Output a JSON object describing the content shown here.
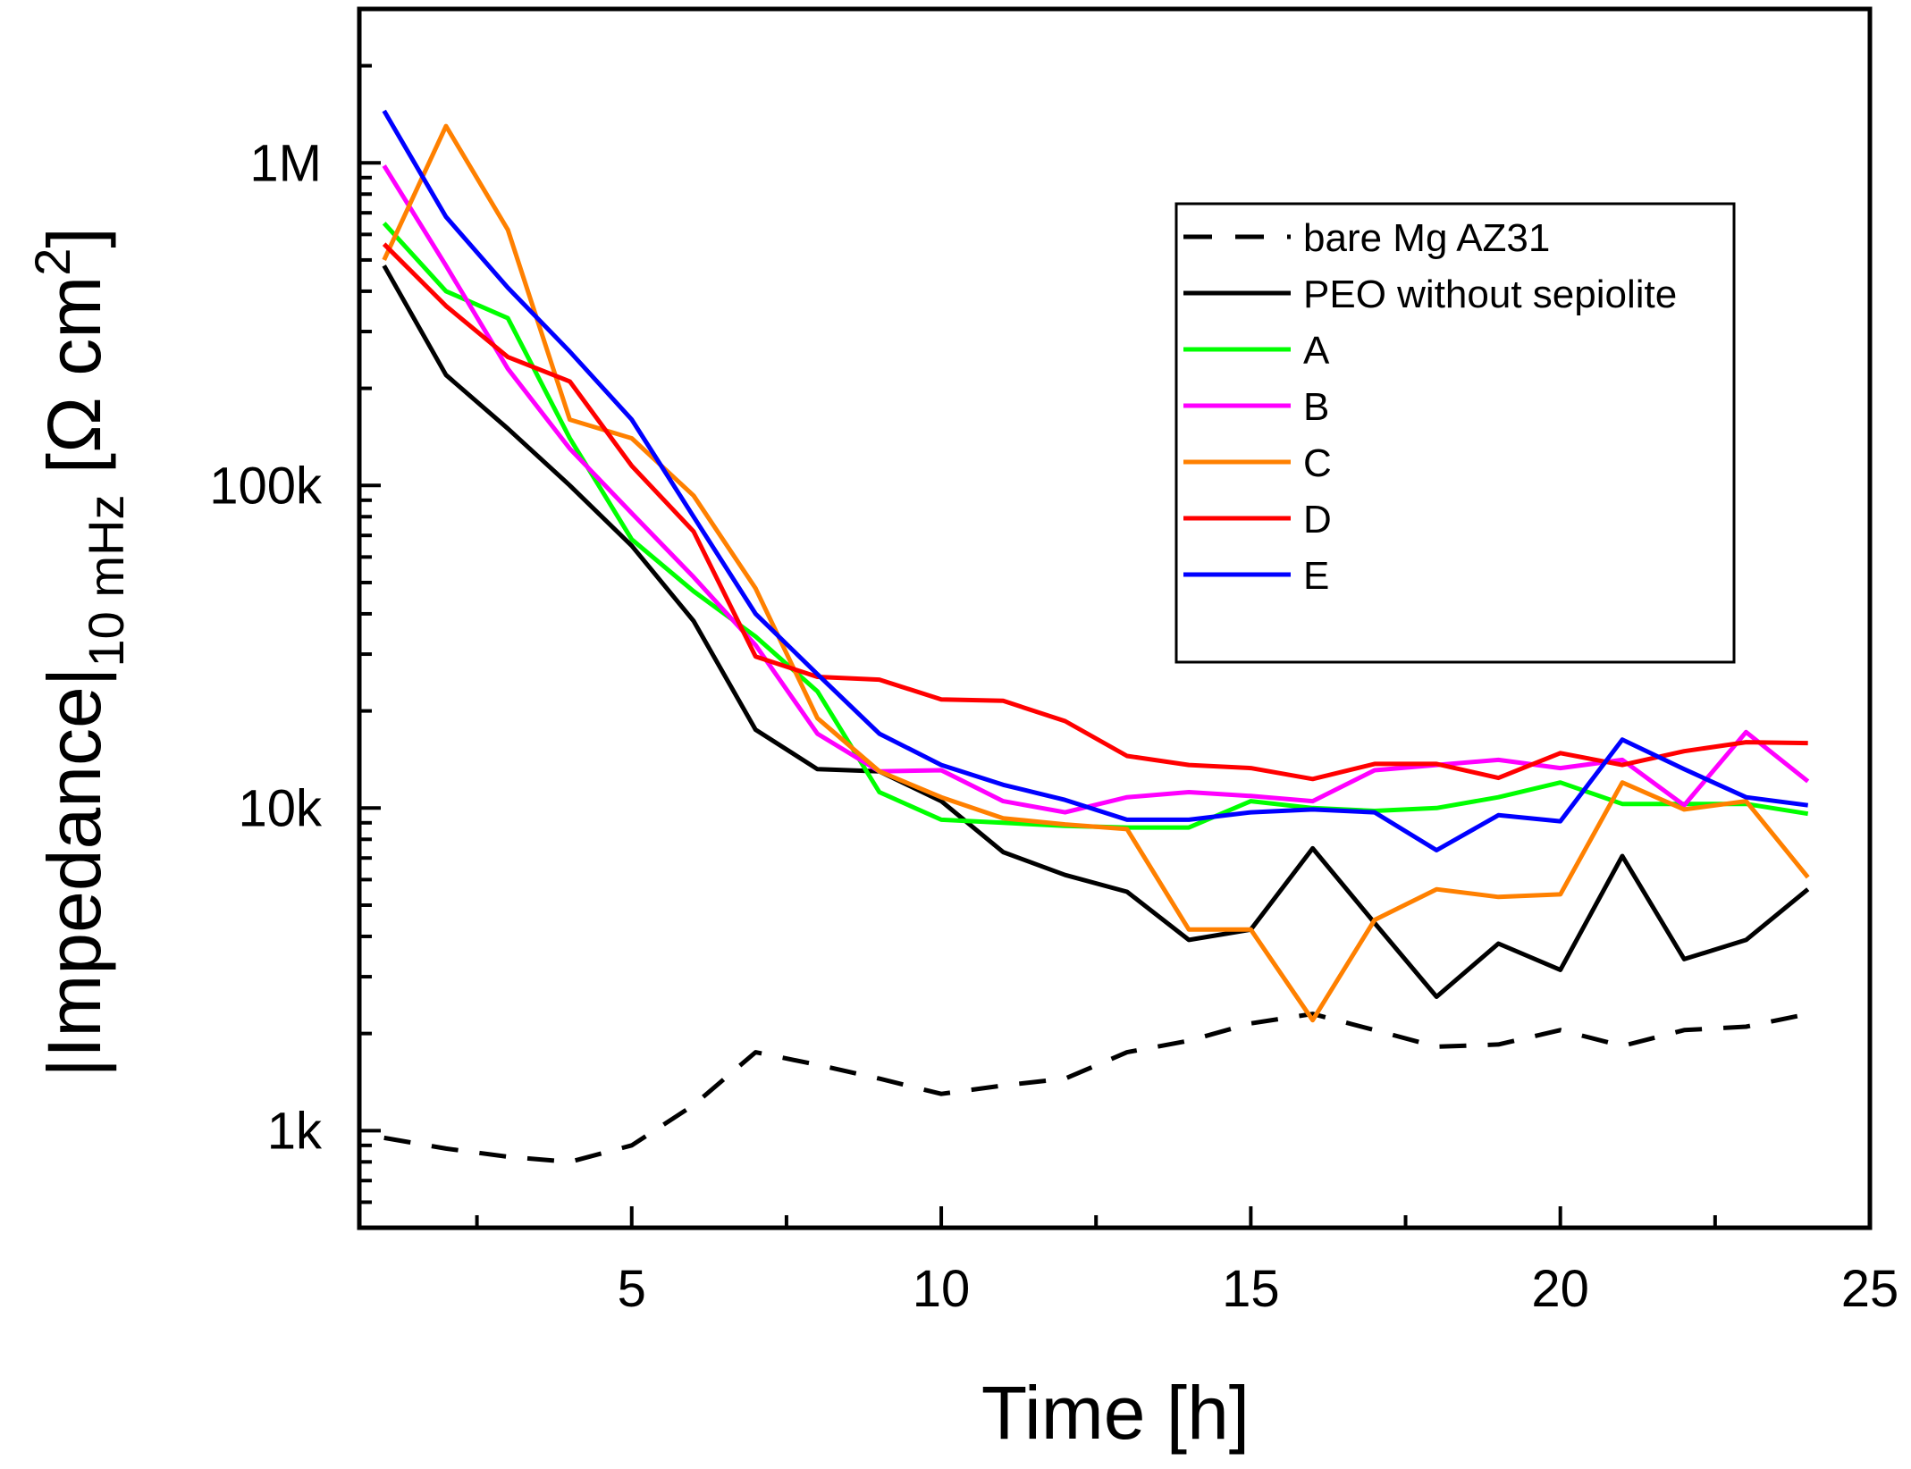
{
  "chart_data": {
    "type": "line",
    "title": "",
    "xlabel": "Time [h]",
    "ylabel": {
      "main": "|Impedance|",
      "subscript": "10 mHz",
      "unit_prefix": " [Ω cm",
      "unit_superscript": "2",
      "unit_suffix": "]"
    },
    "xlim": [
      0.6,
      25
    ],
    "ylim": [
      500,
      3000000
    ],
    "yscale": "log",
    "x_major_ticks": [
      5,
      10,
      15,
      20,
      25
    ],
    "x_tick_labels": [
      "5",
      "10",
      "15",
      "20",
      "25"
    ],
    "y_major_ticks": [
      1000,
      10000,
      100000,
      1000000
    ],
    "y_tick_labels": [
      "1k",
      "10k",
      "100k",
      "1M"
    ],
    "legend_position": "right",
    "x": [
      1,
      2,
      3,
      4,
      5,
      6,
      7,
      8,
      9,
      10,
      11,
      12,
      13,
      14,
      15,
      16,
      17,
      18,
      19,
      20,
      21,
      22,
      23,
      24
    ],
    "series": [
      {
        "name": "bare Mg AZ31",
        "color": "#000000",
        "dashed": true,
        "values": [
          950,
          880,
          830,
          800,
          900,
          1200,
          1750,
          1600,
          1450,
          1300,
          1380,
          1450,
          1750,
          1900,
          2150,
          2300,
          2050,
          1820,
          1850,
          2050,
          1830,
          2050,
          2100,
          2300
        ]
      },
      {
        "name": "PEO without sepiolite",
        "color": "#000000",
        "dashed": false,
        "values": [
          480000,
          220000,
          150000,
          100000,
          65000,
          38000,
          17500,
          13200,
          13000,
          10500,
          7300,
          6200,
          5500,
          3900,
          4200,
          7500,
          4400,
          2600,
          3800,
          3150,
          7100,
          3400,
          3900,
          5600
        ]
      },
      {
        "name": "A",
        "color": "#00ff00",
        "dashed": false,
        "values": [
          650000,
          400000,
          330000,
          140000,
          68000,
          47000,
          34000,
          23000,
          11200,
          9200,
          9000,
          8800,
          8700,
          8700,
          10500,
          10000,
          9800,
          10000,
          10800,
          12000,
          10300,
          10300,
          10300,
          9600
        ]
      },
      {
        "name": "B",
        "color": "#ff00ff",
        "dashed": false,
        "values": [
          980000,
          480000,
          230000,
          130000,
          82000,
          52000,
          32000,
          17000,
          13000,
          13100,
          10500,
          9700,
          10800,
          11200,
          10900,
          10500,
          13100,
          13600,
          14100,
          13300,
          14100,
          10200,
          17200,
          12100
        ]
      },
      {
        "name": "C",
        "color": "#ff8000",
        "dashed": false,
        "values": [
          500000,
          1300000,
          620000,
          160000,
          140000,
          93000,
          48000,
          19000,
          13000,
          10800,
          9300,
          8900,
          8600,
          4200,
          4200,
          2200,
          4500,
          5600,
          5300,
          5400,
          12000,
          9900,
          10500,
          6100
        ]
      },
      {
        "name": "D",
        "color": "#ff0000",
        "dashed": false,
        "values": [
          560000,
          360000,
          250000,
          210000,
          115000,
          72000,
          29500,
          25500,
          25000,
          21700,
          21500,
          18600,
          14500,
          13600,
          13300,
          12300,
          13700,
          13700,
          12400,
          14800,
          13600,
          15000,
          16000,
          15900
        ]
      },
      {
        "name": "E",
        "color": "#0000ff",
        "dashed": false,
        "values": [
          1450000,
          680000,
          410000,
          260000,
          160000,
          80000,
          40000,
          26000,
          17000,
          13600,
          11800,
          10600,
          9200,
          9200,
          9700,
          9900,
          9700,
          7400,
          9500,
          9100,
          16300,
          13200,
          10800,
          10200
        ]
      }
    ]
  }
}
